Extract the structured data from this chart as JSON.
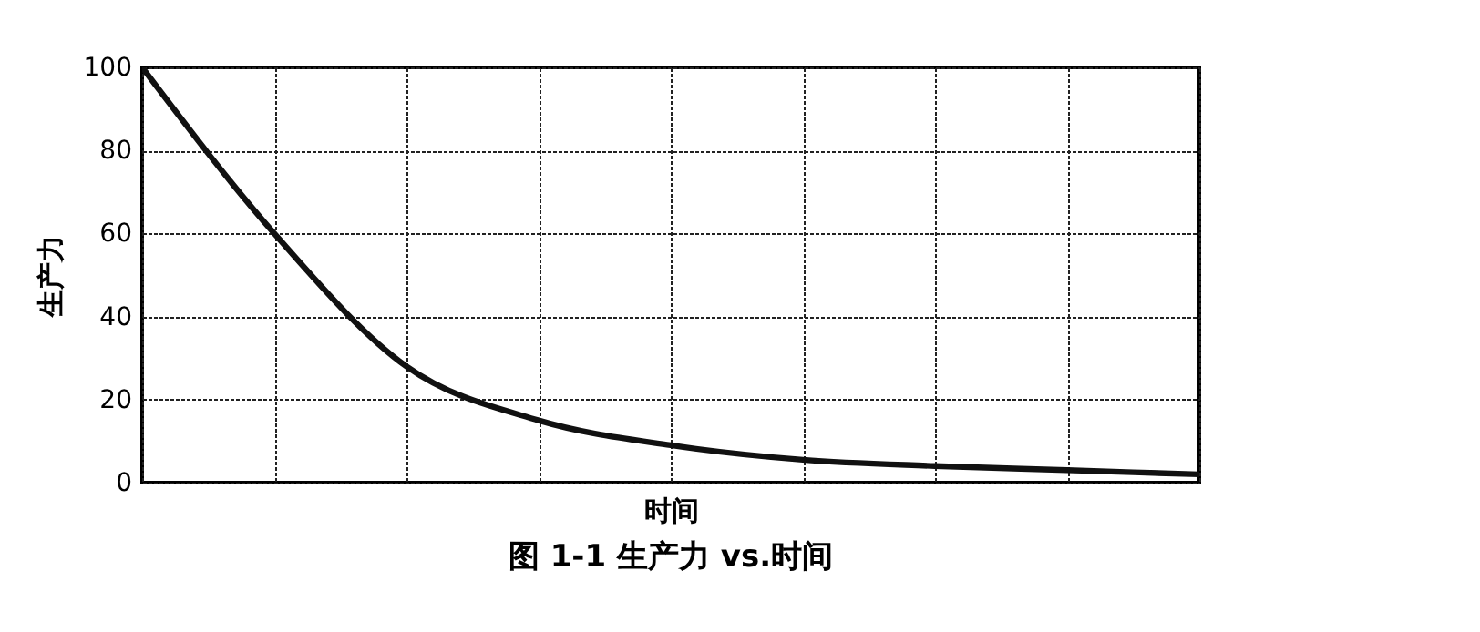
{
  "chart_data": {
    "type": "line",
    "title": "图 1-1    生产力 vs.时间",
    "xlabel": "时间",
    "ylabel": "生产力",
    "categories": [
      null,
      null,
      null,
      null,
      null,
      null,
      null,
      null,
      null
    ],
    "series": [
      {
        "color": "#111111",
        "values": [
          100,
          60,
          28,
          15,
          9,
          5.5,
          4,
          3,
          2
        ]
      }
    ],
    "ylim": [
      0,
      100
    ],
    "yticks": [
      0,
      20,
      40,
      60,
      80,
      100
    ],
    "grid": true,
    "tick_labels": "y",
    "marker": "none",
    "line_style": "solid"
  }
}
